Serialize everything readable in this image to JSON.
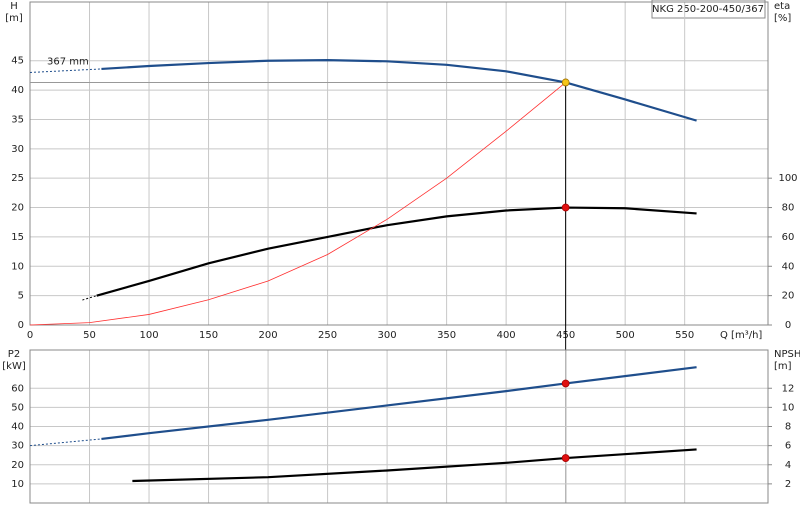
{
  "title": "NKG 250-200-450/367",
  "chart_data": [
    {
      "type": "line",
      "annotation": "367 mm",
      "xlabel": "Q [m³/h]",
      "ylabel": [
        "H",
        "[m]"
      ],
      "y2label": [
        "eta",
        "[%]"
      ],
      "xlim": [
        0,
        620
      ],
      "xticks": [
        0,
        50,
        100,
        150,
        200,
        250,
        300,
        350,
        400,
        450,
        500,
        550
      ],
      "ylim": [
        0,
        55
      ],
      "yticks": [
        0,
        5,
        10,
        15,
        20,
        25,
        30,
        35,
        40,
        45
      ],
      "y2lim": [
        0,
        220
      ],
      "y2ticks": [
        0,
        20,
        40,
        60,
        80,
        100
      ],
      "series": [
        {
          "color": "#1f4e8c",
          "dash": true,
          "width": 1,
          "x": [
            0,
            60
          ],
          "values": [
            43,
            43.6
          ]
        },
        {
          "color": "#1f4e8c",
          "width": 2.2,
          "x": [
            60,
            100,
            150,
            200,
            250,
            300,
            350,
            400,
            450,
            500,
            560
          ],
          "values": [
            43.6,
            44.1,
            44.6,
            45.0,
            45.1,
            44.9,
            44.3,
            43.2,
            41.3,
            38.4,
            34.8
          ]
        },
        {
          "color": "#000000",
          "dash": true,
          "width": 1,
          "axis": "y2",
          "x": [
            44,
            56
          ],
          "values": [
            17,
            20
          ]
        },
        {
          "color": "#000000",
          "width": 2.2,
          "axis": "y2",
          "x": [
            56,
            100,
            150,
            200,
            250,
            300,
            350,
            400,
            450,
            500,
            560
          ],
          "values": [
            20,
            30,
            42,
            52,
            60,
            68,
            74,
            78,
            80,
            79.5,
            76
          ]
        },
        {
          "color": "#ff3030",
          "width": 0.8,
          "x": [
            0,
            50,
            100,
            150,
            200,
            250,
            300,
            350,
            400,
            450
          ],
          "values": [
            0,
            0.4,
            1.8,
            4.3,
            7.5,
            12,
            18,
            25,
            33,
            41.3
          ]
        }
      ],
      "markers": [
        {
          "x": 450,
          "y": 41.3,
          "color": "#f5c518"
        },
        {
          "x": 450,
          "y": 80,
          "color": "#e01010",
          "axis": "y2"
        }
      ]
    },
    {
      "type": "line",
      "ylabel": [
        "P2",
        "[kW]"
      ],
      "y2label": [
        "NPSH",
        "[m]"
      ],
      "xlim": [
        0,
        620
      ],
      "ylim": [
        0,
        80
      ],
      "yticks": [
        10,
        20,
        30,
        40,
        50,
        60
      ],
      "y2lim": [
        0,
        16
      ],
      "y2ticks": [
        2,
        4,
        6,
        8,
        10,
        12
      ],
      "series": [
        {
          "color": "#1f4e8c",
          "dash": true,
          "width": 1,
          "x": [
            0,
            60
          ],
          "values": [
            30,
            33.5
          ]
        },
        {
          "color": "#1f4e8c",
          "width": 2.2,
          "x": [
            60,
            100,
            200,
            300,
            400,
            450,
            560
          ],
          "values": [
            33.5,
            36.5,
            43.5,
            51,
            58.5,
            62.5,
            71
          ]
        },
        {
          "color": "#000000",
          "width": 2.2,
          "axis": "y2",
          "x": [
            86,
            200,
            300,
            400,
            450,
            560
          ],
          "values": [
            2.3,
            2.7,
            3.4,
            4.2,
            4.7,
            5.6
          ]
        }
      ],
      "markers": [
        {
          "x": 450,
          "y": 62.5,
          "color": "#e01010"
        },
        {
          "x": 450,
          "y": 4.7,
          "color": "#e01010",
          "axis": "y2"
        }
      ]
    }
  ]
}
